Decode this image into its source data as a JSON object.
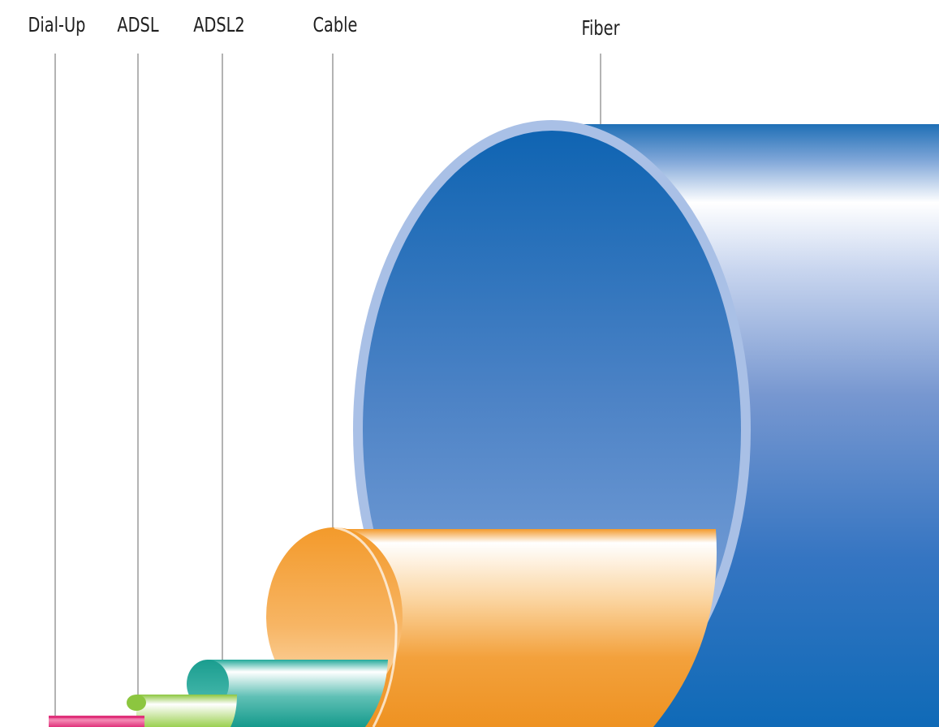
{
  "pipes": [
    {
      "id": "dialup",
      "label": "Dial-Up",
      "color": "#e0317a"
    },
    {
      "id": "adsl",
      "label": "ADSL",
      "color": "#8cc63f"
    },
    {
      "id": "adsl2",
      "label": "ADSL2",
      "color": "#1fa89a"
    },
    {
      "id": "cable",
      "label": "Cable",
      "color": "#f39a2b"
    },
    {
      "id": "fiber",
      "label": "Fiber",
      "color": "#1a6fb8"
    }
  ]
}
